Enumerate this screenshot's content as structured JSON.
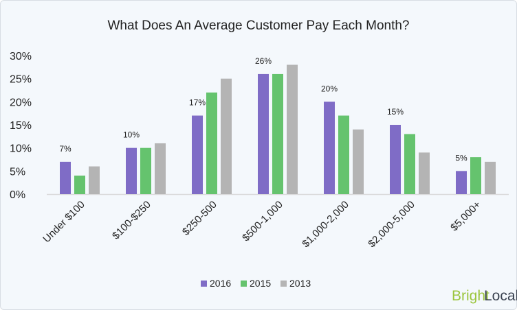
{
  "chart_data": {
    "type": "bar",
    "title": "What Does An Average Customer Pay Each Month?",
    "xlabel": "",
    "ylabel": "",
    "ylim": [
      0,
      30
    ],
    "yticks": [
      "0%",
      "5%",
      "10%",
      "15%",
      "20%",
      "25%",
      "30%"
    ],
    "grid": false,
    "legend_position": "bottom",
    "categories": [
      "Under $100",
      "$100-$250",
      "$250-500",
      "$500-1,000",
      "$1,000-2,000",
      "$2,000-5,000",
      "$5,000+"
    ],
    "series": [
      {
        "name": "2016",
        "color": "#7f6cc6",
        "values": [
          7,
          10,
          17,
          26,
          20,
          15,
          5
        ]
      },
      {
        "name": "2015",
        "color": "#65c36e",
        "values": [
          4,
          10,
          22,
          26,
          17,
          13,
          8
        ]
      },
      {
        "name": "2013",
        "color": "#b4b4b4",
        "values": [
          6,
          11,
          25,
          28,
          14,
          9,
          7
        ]
      }
    ],
    "data_labels": [
      "7%",
      "10%",
      "17%",
      "26%",
      "20%",
      "15%",
      "5%"
    ]
  },
  "logo": {
    "part1": "Bright",
    "part2": "Local",
    "color1": "#9bc53d",
    "color2": "#3a4250"
  }
}
